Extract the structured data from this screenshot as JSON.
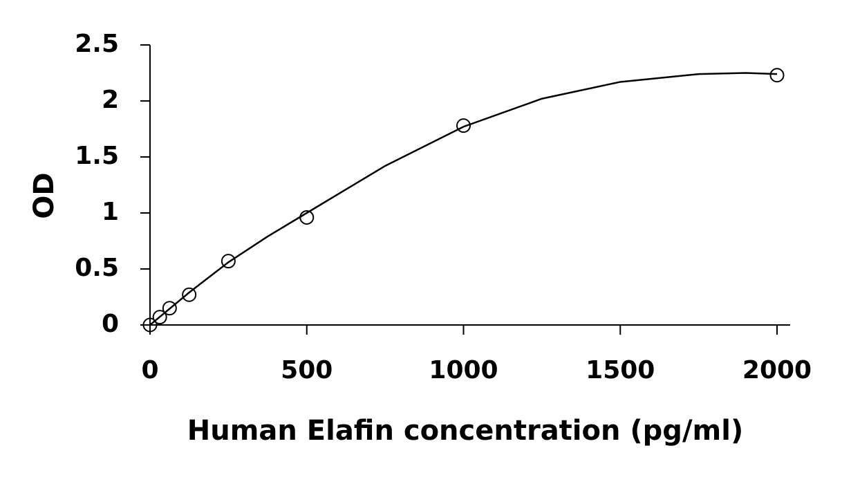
{
  "chart_data": {
    "type": "scatter",
    "x_label": "Human Elafin concentration (pg/ml)",
    "y_label": "OD",
    "series": [
      {
        "style": "markers",
        "color": "#000000",
        "x": [
          0,
          31.25,
          62.5,
          125,
          250,
          500,
          1000,
          2000
        ],
        "values": [
          0.0,
          0.07,
          0.15,
          0.27,
          0.57,
          0.96,
          1.78,
          2.23
        ]
      },
      {
        "style": "line",
        "color": "#000000",
        "x": [
          0,
          125,
          250,
          375,
          500,
          750,
          1000,
          1250,
          1500,
          1750,
          1900,
          2000
        ],
        "values": [
          0.0,
          0.29,
          0.56,
          0.79,
          1.0,
          1.42,
          1.77,
          2.02,
          2.17,
          2.24,
          2.25,
          2.24
        ]
      }
    ],
    "xlim": [
      0,
      2000
    ],
    "xticks": [
      0,
      500,
      1000,
      1500,
      2000
    ],
    "ylim": [
      0,
      2.5
    ],
    "yticks": [
      0,
      0.5,
      1,
      1.5,
      2,
      2.5
    ],
    "grid": false
  }
}
